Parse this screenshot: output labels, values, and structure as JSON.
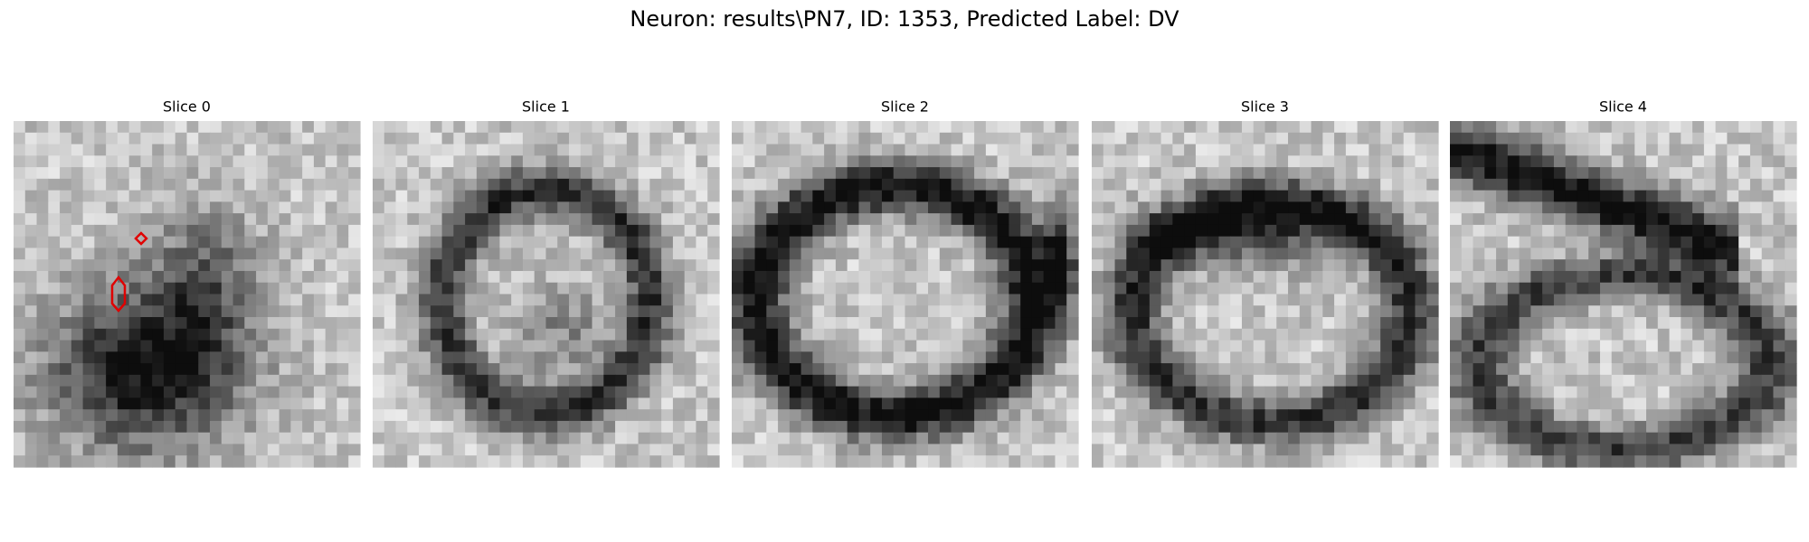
{
  "title": "Neuron: results\\PN7, ID: 1353, Predicted Label: DV",
  "panels": [
    {
      "title": "Slice 0"
    },
    {
      "title": "Slice 1"
    },
    {
      "title": "Slice 2"
    },
    {
      "title": "Slice 3"
    },
    {
      "title": "Slice 4"
    }
  ]
}
